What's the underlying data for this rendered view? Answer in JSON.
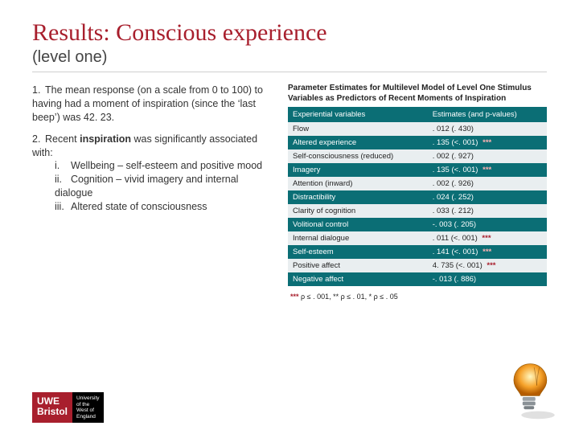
{
  "title": "Results: Conscious experience",
  "subtitle": "(level one)",
  "bullets": {
    "n1_num": "1.",
    "n1_text": "The mean response (on a scale from 0 to 100) to having had a moment of inspiration (since the ‘last beep’) was 42. 23.",
    "n2_num": "2.",
    "n2_lead": "Recent ",
    "n2_bold": "inspiration",
    "n2_rest": " was significantly associated with:",
    "s1_num": "i.",
    "s1_text": "Wellbeing – self-esteem and positive mood",
    "s2_num": "ii.",
    "s2_text": "Cognition – vivid imagery and internal dialogue",
    "s3_num": "iii.",
    "s3_text": "Altered state of consciousness"
  },
  "table": {
    "caption": "Parameter Estimates for Multilevel Model of Level One Stimulus Variables as Predictors of Recent Moments of Inspiration",
    "head_var": "Experiential variables",
    "head_est": "Estimates (and p-values)",
    "rows": [
      {
        "var": "Flow",
        "est": ". 012 (. 430)",
        "stars": "",
        "shade": "light"
      },
      {
        "var": "Altered experience",
        "est": ". 135 (<. 001)",
        "stars": "***",
        "shade": "dark"
      },
      {
        "var": "Self-consciousness (reduced)",
        "est": ". 002 (. 927)",
        "stars": "",
        "shade": "light"
      },
      {
        "var": "Imagery",
        "est": ". 135 (<. 001)",
        "stars": "***",
        "shade": "dark"
      },
      {
        "var": "Attention (inward)",
        "est": ". 002 (. 926)",
        "stars": "",
        "shade": "light"
      },
      {
        "var": "Distractibility",
        "est": ". 024 (. 252)",
        "stars": "",
        "shade": "dark"
      },
      {
        "var": "Clarity of cognition",
        "est": ". 033 (. 212)",
        "stars": "",
        "shade": "light"
      },
      {
        "var": "Volitional control",
        "est": "-. 003 (. 205)",
        "stars": "",
        "shade": "dark"
      },
      {
        "var": "Internal dialogue",
        "est": ". 011 (<. 001)",
        "stars": "***",
        "shade": "light"
      },
      {
        "var": "Self-esteem",
        "est": ". 141 (<. 001)",
        "stars": "***",
        "shade": "dark"
      },
      {
        "var": "Positive affect",
        "est": "4. 735 (<. 001)",
        "stars": "***",
        "shade": "light"
      },
      {
        "var": "Negative affect",
        "est": "-. 013 (. 886)",
        "stars": "",
        "shade": "dark"
      }
    ],
    "footnote_pre": "*** ",
    "footnote_text": "ρ ≤ . 001, ** ρ ≤ . 01, * ρ ≤ . 05"
  },
  "logo": {
    "brand_l1": "UWE",
    "brand_l2": "Bristol",
    "tag_l1": "University",
    "tag_l2": "of the",
    "tag_l3": "West of",
    "tag_l4": "England"
  },
  "colors": {
    "accent": "#a81f2d",
    "teal": "#0b6e75",
    "light_row": "#e9eef0"
  }
}
